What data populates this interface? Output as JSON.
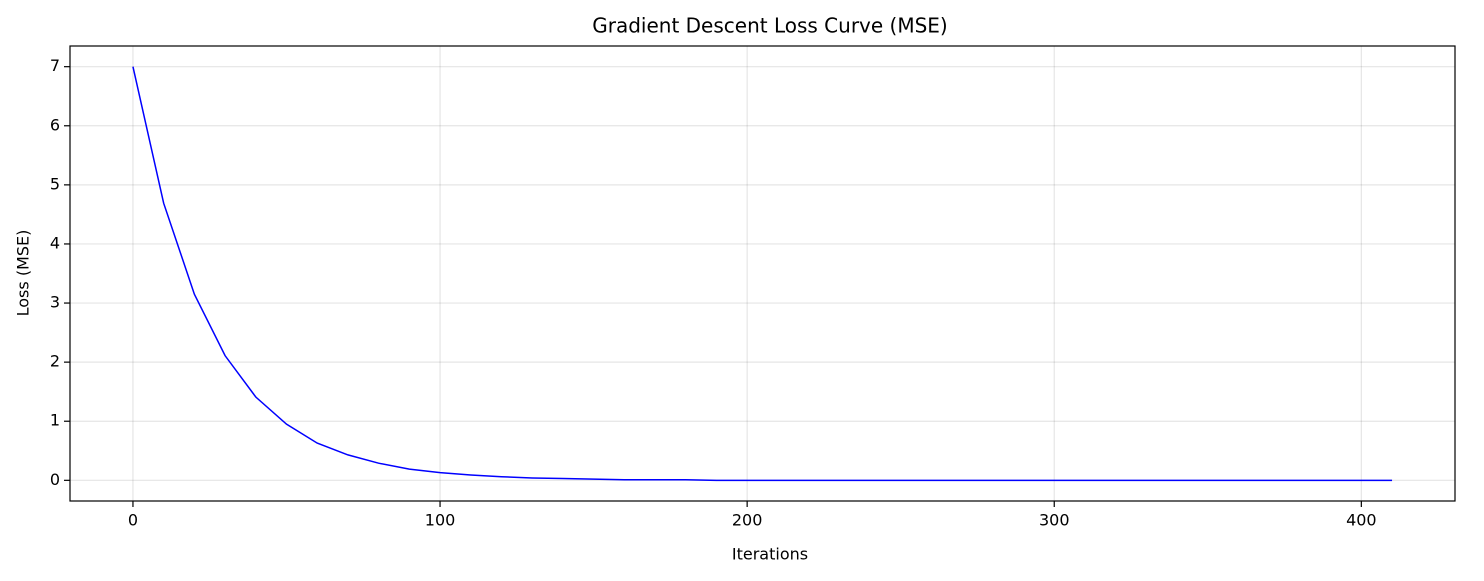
{
  "chart_data": {
    "type": "line",
    "title": "Gradient Descent Loss Curve (MSE)",
    "x_label": "Iterations",
    "y_label": "Loss (MSE)",
    "x": [
      0,
      10,
      20,
      30,
      40,
      50,
      60,
      70,
      80,
      90,
      100,
      110,
      120,
      130,
      140,
      150,
      160,
      170,
      180,
      190,
      200,
      210,
      220,
      230,
      240,
      250,
      260,
      270,
      280,
      290,
      300,
      310,
      320,
      330,
      340,
      350,
      360,
      370,
      380,
      390,
      400,
      410
    ],
    "series": [
      {
        "name": "Loss",
        "color": "#0000ff",
        "values": [
          7,
          4.69,
          3.15,
          2.11,
          1.41,
          0.95,
          0.63,
          0.43,
          0.29,
          0.19,
          0.13,
          0.09,
          0.06,
          0.04,
          0.03,
          0.02,
          0.01,
          0.01,
          0.01,
          0,
          0,
          0,
          0,
          0,
          0,
          0,
          0,
          0,
          0,
          0,
          0,
          0,
          0,
          0,
          0,
          0,
          0,
          0,
          0,
          0,
          0,
          0
        ]
      }
    ],
    "xlim": [
      -20.5,
      430.5
    ],
    "ylim": [
      -0.35,
      7.35
    ],
    "xticks": [
      0,
      100,
      200,
      300,
      400
    ],
    "yticks": [
      0,
      1,
      2,
      3,
      4,
      5,
      6,
      7
    ],
    "grid": true
  }
}
